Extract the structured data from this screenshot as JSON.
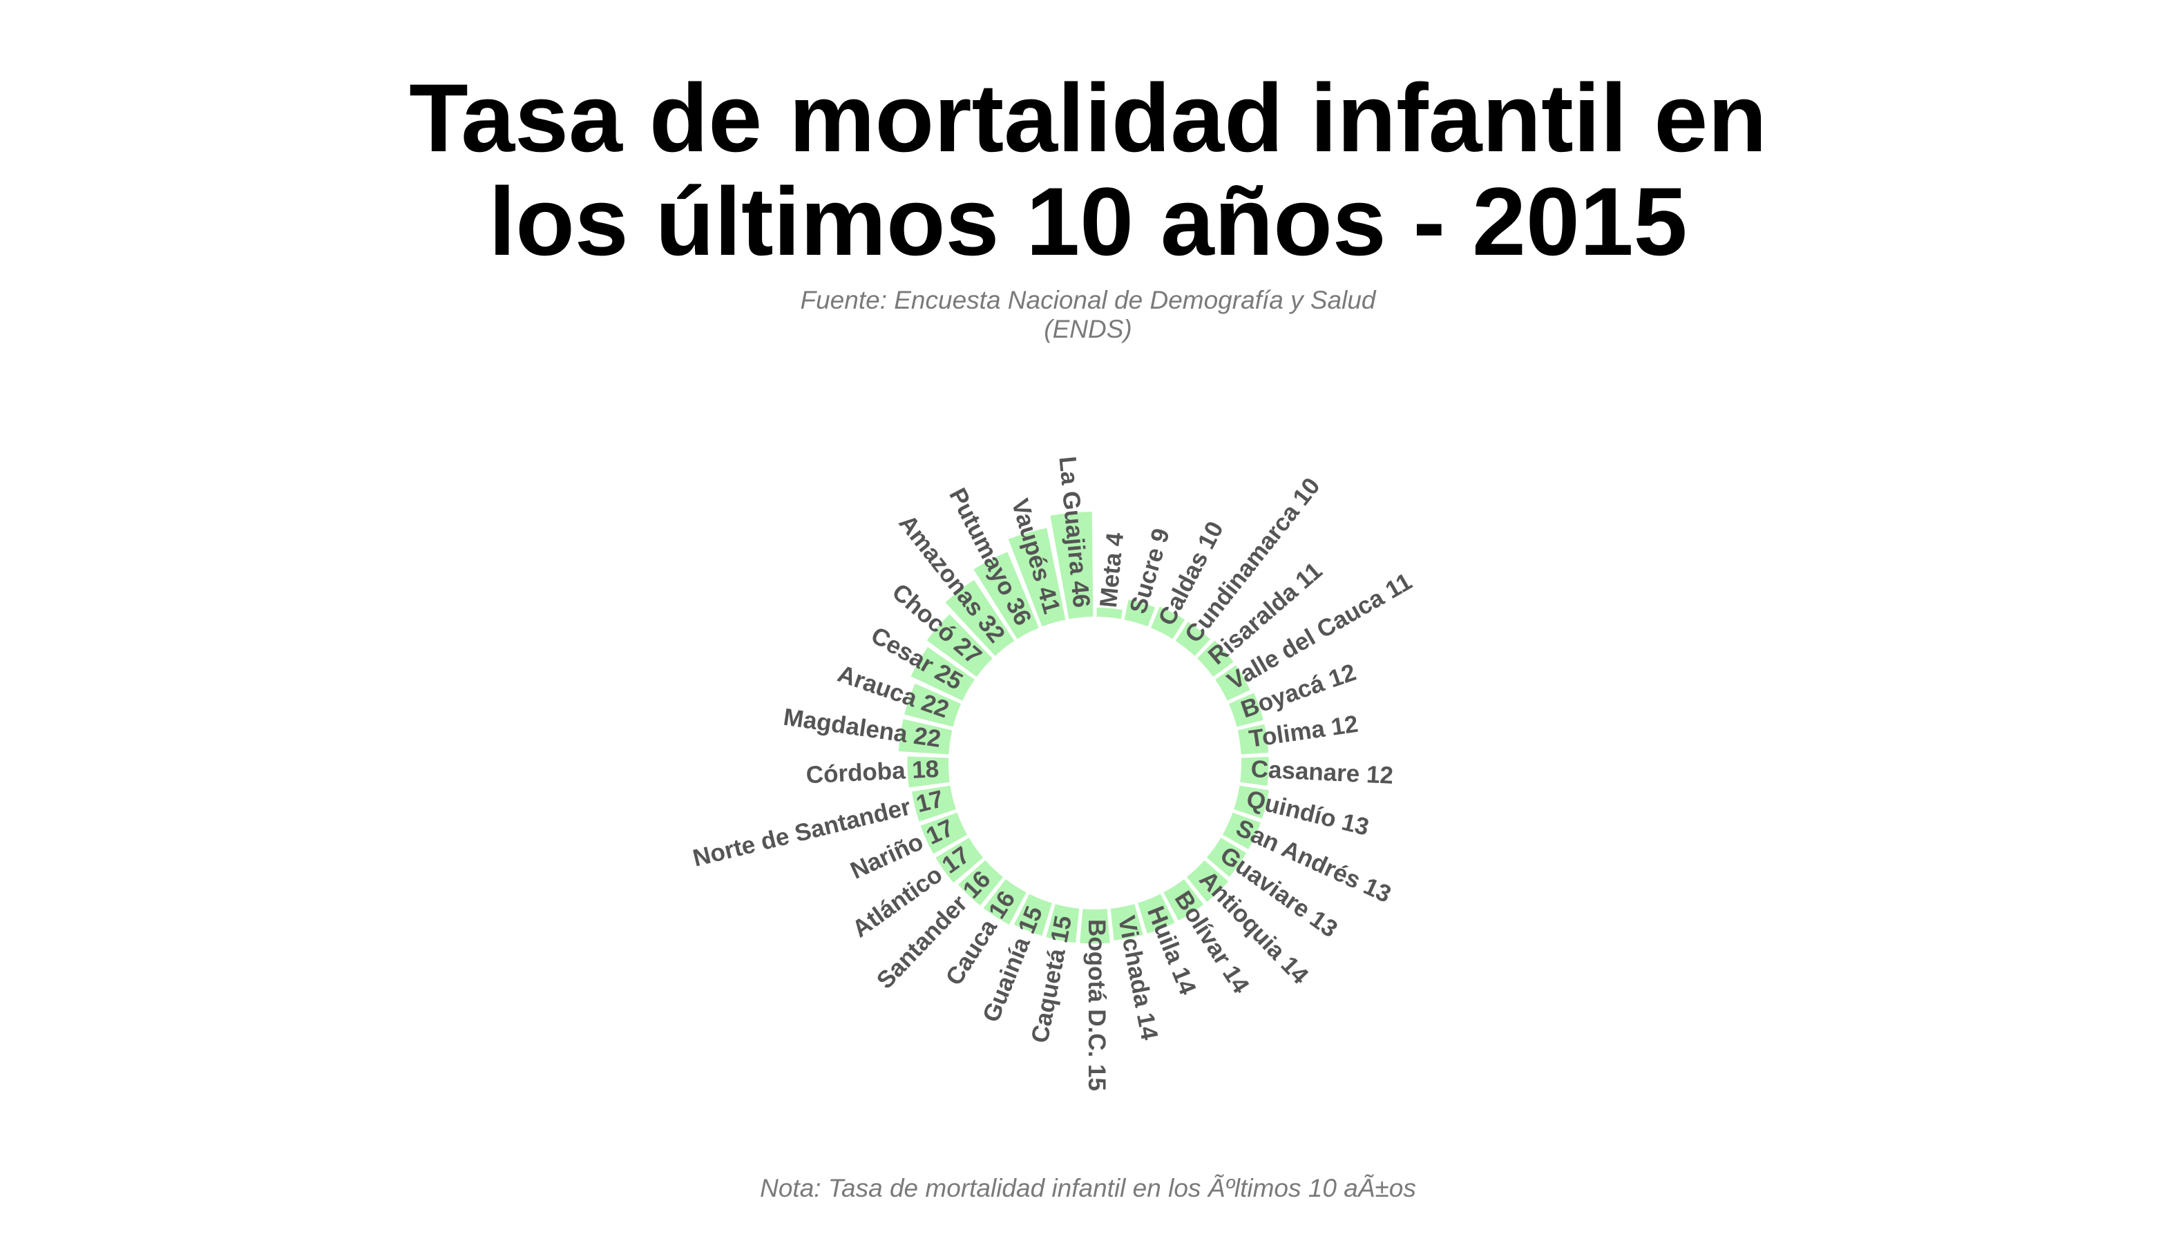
{
  "title_lines": [
    "Tasa de mortalidad infantil en",
    "los últimos 10 años - 2015"
  ],
  "subtitle_lines": [
    "Fuente: Encuesta Nacional de Demografía y Salud",
    "(ENDS)"
  ],
  "caption": "Nota: Tasa de mortalidad infantil en los Ãºltimos 10 aÃ±os",
  "colors": {
    "bar": "#b3f5b3",
    "label": "#555555",
    "title": "#000000",
    "note": "#7a7a7a"
  },
  "chart_data": {
    "type": "bar",
    "layout": "circular",
    "categories": [
      "Meta",
      "Sucre",
      "Caldas",
      "Cundinamarca",
      "Risaralda",
      "Valle del Cauca",
      "Boyacá",
      "Tolima",
      "Casanare",
      "Quindío",
      "San Andrés",
      "Guaviare",
      "Antioquia",
      "Bolívar",
      "Huila",
      "Vichada",
      "Bogotá D.C.",
      "Caquetá",
      "Guainía",
      "Cauca",
      "Santander",
      "Atlántico",
      "Nariño",
      "Norte de Santander",
      "Córdoba",
      "Magdalena",
      "Arauca",
      "Cesar",
      "Chocó",
      "Amazonas",
      "Putumayo",
      "Vaupés",
      "La Guajira"
    ],
    "values": [
      4,
      9,
      10,
      10,
      11,
      11,
      12,
      12,
      12,
      13,
      13,
      13,
      14,
      14,
      14,
      14,
      15,
      15,
      15,
      16,
      16,
      17,
      17,
      17,
      18,
      22,
      22,
      25,
      27,
      32,
      36,
      41,
      46
    ],
    "labels": [
      "Meta 4",
      "Sucre 9",
      "Caldas 10",
      "Cundinamarca 10",
      "Risaralda 11",
      "Valle del Cauca 11",
      "Boyacá 12",
      "Tolima 12",
      "Casanare 12",
      "Quindío 13",
      "San Andrés 13",
      "Guaviare 13",
      "Antioquia 14",
      "Bolívar 14",
      "Huila 14",
      "Vichada 14",
      "Bogotá D.C. 15",
      "Caquetá 15",
      "Guainía 15",
      "Cauca 16",
      "Santander 16",
      "Atlántico 17",
      "Nariño 17",
      "Norte de Santander 17",
      "Córdoba 18",
      "Magdalena 22",
      "Arauca 22",
      "Cesar 25",
      "Chocó 27",
      "Amazonas 32",
      "Putumayo 36",
      "Vaupés 41",
      "La Guajira 46"
    ],
    "title": "Tasa de mortalidad infantil en los últimos 10 años - 2015",
    "subtitle": "Fuente: Encuesta Nacional de Demografía y Salud (ENDS)",
    "caption": "Nota: Tasa de mortalidad infantil en los Ãºltimos 10 aÃ±os",
    "xlabel": "",
    "ylabel": "",
    "ylim": [
      0,
      46
    ],
    "grid": false,
    "legend": "none"
  }
}
